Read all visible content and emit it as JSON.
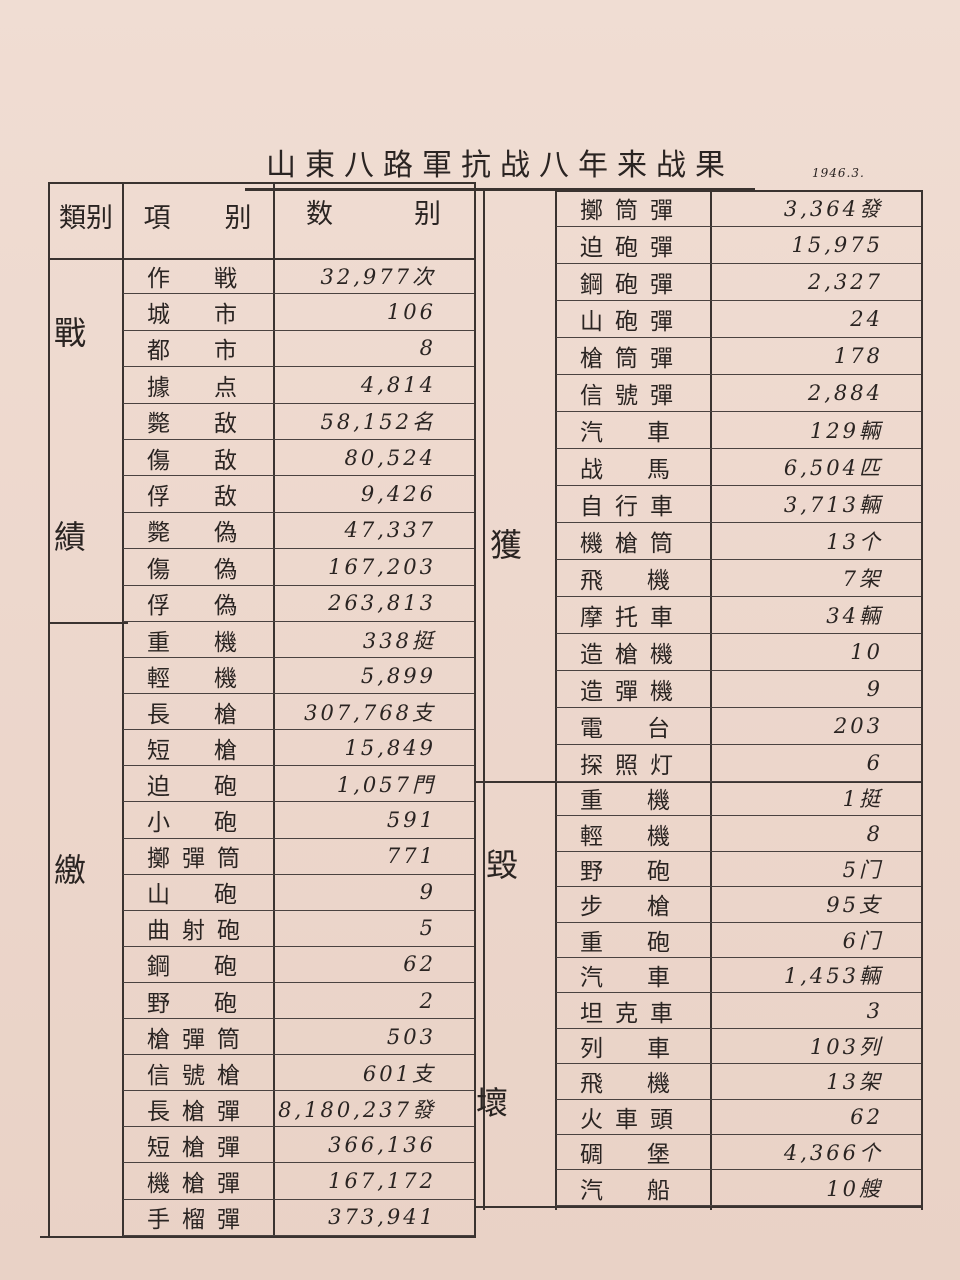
{
  "title": "山東八路軍抗战八年来战果",
  "date": "1946.3.",
  "header": {
    "category": "類别",
    "item": "項　　别",
    "value": "数　　　别"
  },
  "categories": {
    "battle_1": "戰",
    "battle_2": "績",
    "capture_1": "繳",
    "capture_2": "獲",
    "destroy_1": "毀",
    "destroy_2": "壞"
  },
  "battle": [
    {
      "item": "作戦",
      "value": "32,977次"
    },
    {
      "item": "城市",
      "value": "106"
    },
    {
      "item": "都市",
      "value": "8"
    },
    {
      "item": "據点",
      "value": "4,814"
    },
    {
      "item": "斃敌",
      "value": "58,152名"
    },
    {
      "item": "傷敌",
      "value": "80,524"
    },
    {
      "item": "俘敌",
      "value": "9,426"
    },
    {
      "item": "斃偽",
      "value": "47,337"
    },
    {
      "item": "傷偽",
      "value": "167,203"
    },
    {
      "item": "俘偽",
      "value": "263,813"
    }
  ],
  "captured_left": [
    {
      "item": "重機",
      "value": "338挺"
    },
    {
      "item": "輕機",
      "value": "5,899"
    },
    {
      "item": "長槍",
      "value": "307,768支"
    },
    {
      "item": "短槍",
      "value": "15,849"
    },
    {
      "item": "迫砲",
      "value": "1,057門"
    },
    {
      "item": "小砲",
      "value": "591"
    },
    {
      "item": "擲彈筒",
      "value": "771"
    },
    {
      "item": "山砲",
      "value": "9"
    },
    {
      "item": "曲射砲",
      "value": "5"
    },
    {
      "item": "鋼砲",
      "value": "62"
    },
    {
      "item": "野砲",
      "value": "2"
    },
    {
      "item": "槍彈筒",
      "value": "503"
    },
    {
      "item": "信號槍",
      "value": "601支"
    },
    {
      "item": "長槍彈",
      "value": "8,180,237發"
    },
    {
      "item": "短槍彈",
      "value": "366,136"
    },
    {
      "item": "機槍彈",
      "value": "167,172"
    },
    {
      "item": "手榴彈",
      "value": "373,941"
    }
  ],
  "captured_right": [
    {
      "item": "擲筒彈",
      "value": "3,364發"
    },
    {
      "item": "迫砲彈",
      "value": "15,975"
    },
    {
      "item": "鋼砲彈",
      "value": "2,327"
    },
    {
      "item": "山砲彈",
      "value": "24"
    },
    {
      "item": "槍筒彈",
      "value": "178"
    },
    {
      "item": "信號彈",
      "value": "2,884"
    },
    {
      "item": "汽車",
      "value": "129輛"
    },
    {
      "item": "战馬",
      "value": "6,504匹"
    },
    {
      "item": "自行車",
      "value": "3,713輛"
    },
    {
      "item": "機槍筒",
      "value": "13个"
    },
    {
      "item": "飛機",
      "value": "7架"
    },
    {
      "item": "摩托車",
      "value": "34輛"
    },
    {
      "item": "造槍機",
      "value": "10"
    },
    {
      "item": "造彈機",
      "value": "9"
    },
    {
      "item": "電台",
      "value": "203"
    },
    {
      "item": "探照灯",
      "value": "6"
    }
  ],
  "destroyed": [
    {
      "item": "重機",
      "value": "1挺"
    },
    {
      "item": "輕機",
      "value": "8"
    },
    {
      "item": "野砲",
      "value": "5门"
    },
    {
      "item": "步槍",
      "value": "95支"
    },
    {
      "item": "重砲",
      "value": "6门"
    },
    {
      "item": "汽車",
      "value": "1,453輛"
    },
    {
      "item": "坦克車",
      "value": "3"
    },
    {
      "item": "列車",
      "value": "103列"
    },
    {
      "item": "飛機",
      "value": "13架"
    },
    {
      "item": "火車頭",
      "value": "62"
    },
    {
      "item": "碉堡",
      "value": "4,366个"
    },
    {
      "item": "汽船",
      "value": "10艘"
    }
  ]
}
